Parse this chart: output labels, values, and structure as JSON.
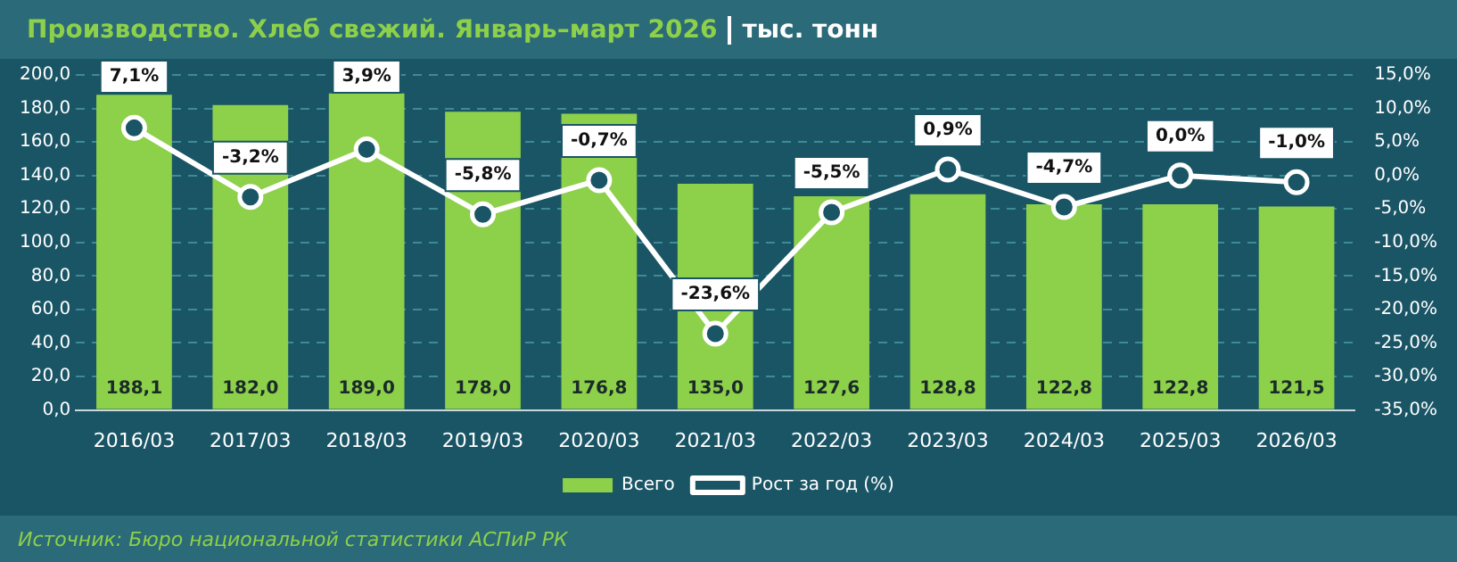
{
  "chart_data": {
    "type": "bar",
    "title": "Производство. Хлеб свежий. Январь–март 2026",
    "subtitle": "тыс. тонн",
    "categories": [
      "2016/03",
      "2017/03",
      "2018/03",
      "2019/03",
      "2020/03",
      "2021/03",
      "2022/03",
      "2023/03",
      "2024/03",
      "2025/03",
      "2026/03"
    ],
    "series": [
      {
        "name": "Всего",
        "color": "#8dd04a",
        "values": [
          188.1,
          182.0,
          189.0,
          178.0,
          176.8,
          135.0,
          127.6,
          128.8,
          122.8,
          122.8,
          121.5
        ],
        "value_labels": [
          "188,1",
          "182,0",
          "189,0",
          "178,0",
          "176,8",
          "135,0",
          "127,6",
          "128,8",
          "122,8",
          "122,8",
          "121,5"
        ]
      },
      {
        "name": "Рост за год (%)",
        "type": "line",
        "axis": "y2",
        "color": "#ffffff",
        "marker": "circle",
        "values": [
          7.1,
          -3.2,
          3.9,
          -5.8,
          -0.7,
          -23.6,
          -5.5,
          0.9,
          -4.7,
          0.0,
          -1.0
        ],
        "value_labels": [
          "7,1%",
          "-3,2%",
          "3,9%",
          "-5,8%",
          "-0,7%",
          "-23,6%",
          "-5,5%",
          "0,9%",
          "-4,7%",
          "0,0%",
          "-1,0%"
        ]
      }
    ],
    "ylim": [
      0,
      200
    ],
    "yticks": [
      {
        "value": 0,
        "label": "0,0"
      },
      {
        "value": 20,
        "label": "20,0"
      },
      {
        "value": 40,
        "label": "40,0"
      },
      {
        "value": 60,
        "label": "60,0"
      },
      {
        "value": 80,
        "label": "80,0"
      },
      {
        "value": 100,
        "label": "100,0"
      },
      {
        "value": 120,
        "label": "120,0"
      },
      {
        "value": 140,
        "label": "140,0"
      },
      {
        "value": 160,
        "label": "160,0"
      },
      {
        "value": 180,
        "label": "180,0"
      },
      {
        "value": 200,
        "label": "200,0"
      }
    ],
    "y2lim": [
      -35,
      15
    ],
    "y2ticks": [
      {
        "value": -35,
        "label": "-35,0%"
      },
      {
        "value": -30,
        "label": "-30,0%"
      },
      {
        "value": -25,
        "label": "-25,0%"
      },
      {
        "value": -20,
        "label": "-20,0%"
      },
      {
        "value": -15,
        "label": "-15,0%"
      },
      {
        "value": -10,
        "label": "-10,0%"
      },
      {
        "value": -5,
        "label": "-5,0%"
      },
      {
        "value": 0,
        "label": "0,0%"
      },
      {
        "value": 5,
        "label": "5,0%"
      },
      {
        "value": 10,
        "label": "10,0%"
      },
      {
        "value": 15,
        "label": "15,0%"
      }
    ],
    "grid": "y",
    "legend": "bottom",
    "annotations": [
      "Источник: Бюро национальной статистики АСПиР РК"
    ]
  }
}
